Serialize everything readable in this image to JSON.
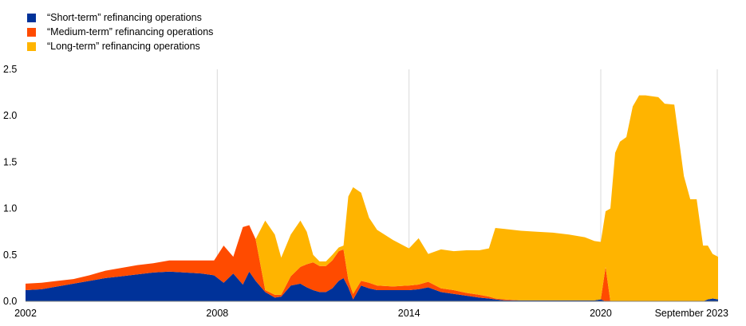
{
  "chart_data": {
    "type": "area",
    "stacked": true,
    "title": "",
    "xlabel": "",
    "ylabel": "",
    "ylim": [
      0,
      2.5
    ],
    "yticks": [
      "0.0",
      "0.5",
      "1.0",
      "1.5",
      "2.0",
      "2.5"
    ],
    "xticks": [
      {
        "label": "2002",
        "x": 2002.0
      },
      {
        "label": "2008",
        "x": 2008.0
      },
      {
        "label": "2014",
        "x": 2014.0
      },
      {
        "label": "2020",
        "x": 2020.0
      },
      {
        "label": "September 2023",
        "x": 2023.67
      }
    ],
    "xlim": [
      2002.0,
      2023.67
    ],
    "grid": "vertical",
    "legend_position": "top-left",
    "x": [
      2002.0,
      2002.5,
      2003.0,
      2003.5,
      2004.0,
      2004.5,
      2005.0,
      2005.5,
      2006.0,
      2006.5,
      2007.0,
      2007.5,
      2007.9,
      2008.2,
      2008.5,
      2008.8,
      2009.0,
      2009.2,
      2009.5,
      2009.8,
      2010.0,
      2010.3,
      2010.6,
      2010.8,
      2011.0,
      2011.2,
      2011.4,
      2011.6,
      2011.8,
      2011.95,
      2012.1,
      2012.25,
      2012.5,
      2012.75,
      2013.0,
      2013.5,
      2014.0,
      2014.3,
      2014.6,
      2015.0,
      2015.4,
      2015.8,
      2016.2,
      2016.5,
      2016.7,
      2017.0,
      2017.5,
      2018.0,
      2018.5,
      2019.0,
      2019.5,
      2019.8,
      2020.0,
      2020.15,
      2020.3,
      2020.45,
      2020.6,
      2020.8,
      2021.0,
      2021.2,
      2021.4,
      2021.6,
      2021.8,
      2022.0,
      2022.3,
      2022.6,
      2022.8,
      2023.0,
      2023.2,
      2023.35,
      2023.5,
      2023.67
    ],
    "series": [
      {
        "name": "“Short-term” refinancing operations",
        "color": "#003299",
        "values": [
          0.12,
          0.13,
          0.16,
          0.19,
          0.22,
          0.25,
          0.27,
          0.29,
          0.31,
          0.32,
          0.31,
          0.3,
          0.28,
          0.2,
          0.3,
          0.18,
          0.32,
          0.22,
          0.1,
          0.04,
          0.05,
          0.17,
          0.19,
          0.15,
          0.12,
          0.1,
          0.1,
          0.14,
          0.22,
          0.25,
          0.15,
          0.02,
          0.17,
          0.14,
          0.12,
          0.12,
          0.12,
          0.13,
          0.15,
          0.1,
          0.08,
          0.06,
          0.04,
          0.03,
          0.02,
          0.01,
          0.01,
          0.01,
          0.01,
          0.01,
          0.01,
          0.01,
          0.02,
          0.0,
          0.0,
          0.0,
          0.0,
          0.0,
          0.0,
          0.0,
          0.0,
          0.0,
          0.0,
          0.0,
          0.0,
          0.0,
          0.0,
          0.0,
          0.0,
          0.02,
          0.03,
          0.02
        ]
      },
      {
        "name": "“Medium-term” refinancing operations",
        "color": "#ff4b00",
        "values": [
          0.07,
          0.07,
          0.06,
          0.05,
          0.06,
          0.08,
          0.09,
          0.1,
          0.1,
          0.12,
          0.13,
          0.14,
          0.16,
          0.4,
          0.18,
          0.62,
          0.5,
          0.45,
          0.02,
          0.03,
          0.02,
          0.1,
          0.18,
          0.25,
          0.3,
          0.28,
          0.28,
          0.3,
          0.32,
          0.31,
          0.08,
          0.06,
          0.05,
          0.06,
          0.05,
          0.04,
          0.05,
          0.05,
          0.06,
          0.04,
          0.04,
          0.03,
          0.03,
          0.02,
          0.01,
          0.01,
          0.0,
          0.0,
          0.0,
          0.0,
          0.0,
          0.0,
          0.0,
          0.37,
          0.0,
          0.0,
          0.0,
          0.0,
          0.0,
          0.0,
          0.0,
          0.0,
          0.0,
          0.0,
          0.0,
          0.0,
          0.0,
          0.0,
          0.0,
          0.0,
          0.0,
          0.0
        ]
      },
      {
        "name": "“Long-term” refinancing operations",
        "color": "#ffb400",
        "values": [
          0.0,
          0.0,
          0.0,
          0.0,
          0.0,
          0.0,
          0.0,
          0.0,
          0.0,
          0.0,
          0.0,
          0.0,
          0.0,
          0.0,
          0.0,
          0.0,
          0.0,
          0.0,
          0.75,
          0.65,
          0.4,
          0.45,
          0.5,
          0.35,
          0.08,
          0.05,
          0.05,
          0.06,
          0.04,
          0.04,
          0.9,
          1.15,
          0.95,
          0.7,
          0.6,
          0.5,
          0.4,
          0.5,
          0.3,
          0.42,
          0.42,
          0.46,
          0.48,
          0.52,
          0.76,
          0.76,
          0.75,
          0.74,
          0.73,
          0.71,
          0.68,
          0.64,
          0.62,
          0.6,
          1.0,
          1.6,
          1.72,
          1.77,
          2.1,
          2.22,
          2.22,
          2.21,
          2.2,
          2.13,
          2.12,
          1.35,
          1.1,
          1.1,
          0.6,
          0.58,
          0.48,
          0.46
        ]
      }
    ]
  }
}
